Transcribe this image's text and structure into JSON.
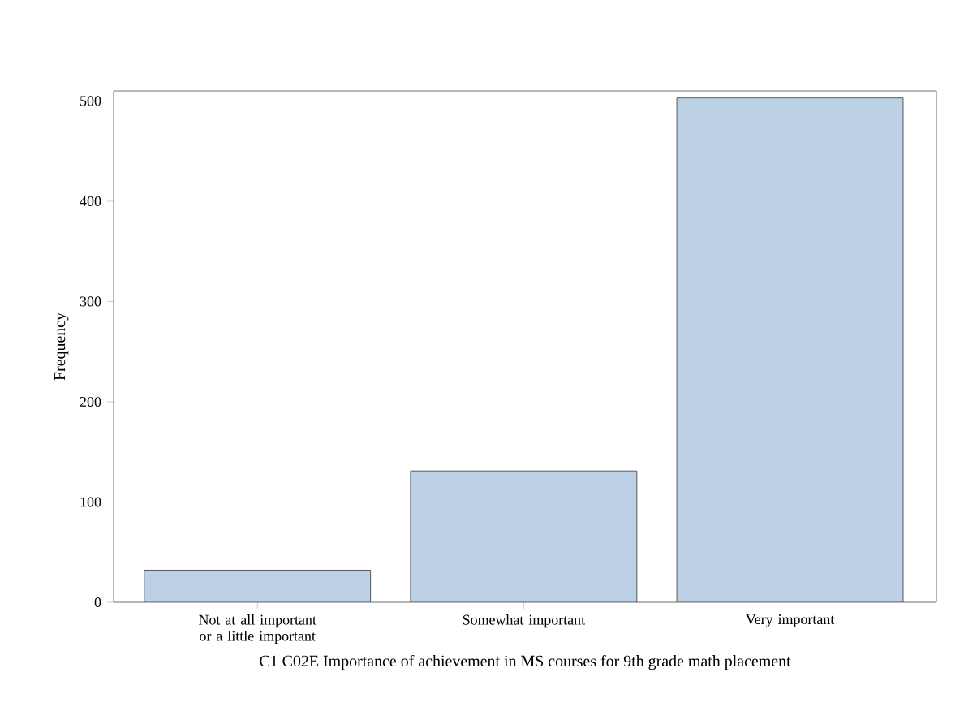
{
  "chart_data": {
    "type": "bar",
    "xlabel": "C1 C02E Importance of achievement in MS courses for 9th grade math placement",
    "ylabel": "Frequency",
    "categories": [
      "Not at all important or a little important",
      "Somewhat important",
      "Very important"
    ],
    "values": [
      32,
      131,
      503
    ],
    "color": "#bcd0e6",
    "ylim": [
      0,
      510
    ],
    "yticks": [
      0,
      100,
      200,
      300,
      400,
      500
    ]
  }
}
